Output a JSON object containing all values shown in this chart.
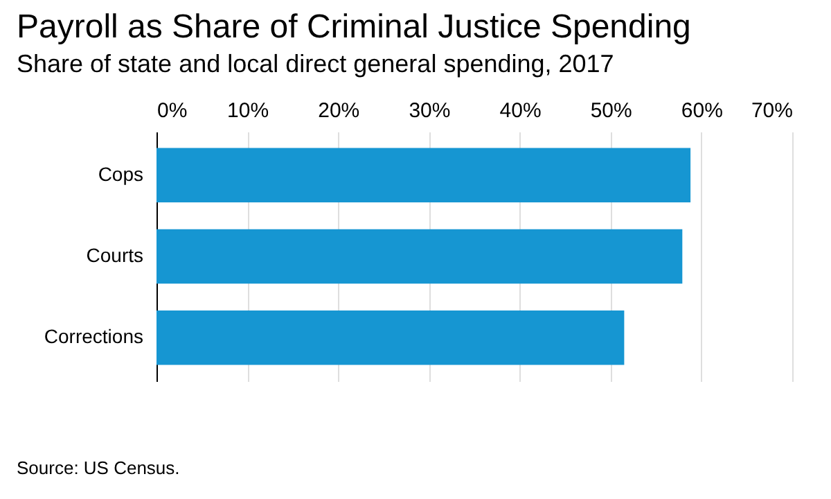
{
  "chart_data": {
    "type": "bar",
    "orientation": "horizontal",
    "title": "Payroll as Share of Criminal Justice Spending",
    "subtitle": "Share of state and local direct general spending, 2017",
    "categories": [
      "Cops",
      "Courts",
      "Corrections"
    ],
    "values": [
      58.8,
      57.9,
      51.5
    ],
    "color": "#1696d2",
    "xlim": [
      0,
      70
    ],
    "xticks": [
      {
        "value": 0,
        "label": "0%"
      },
      {
        "value": 10,
        "label": "10%"
      },
      {
        "value": 20,
        "label": "20%"
      },
      {
        "value": 30,
        "label": "30%"
      },
      {
        "value": 40,
        "label": "40%"
      },
      {
        "value": 50,
        "label": "50%"
      },
      {
        "value": 60,
        "label": "60%"
      },
      {
        "value": 70,
        "label": "70%"
      }
    ],
    "grid": "x",
    "annotations": [
      "Source: US Census."
    ]
  }
}
